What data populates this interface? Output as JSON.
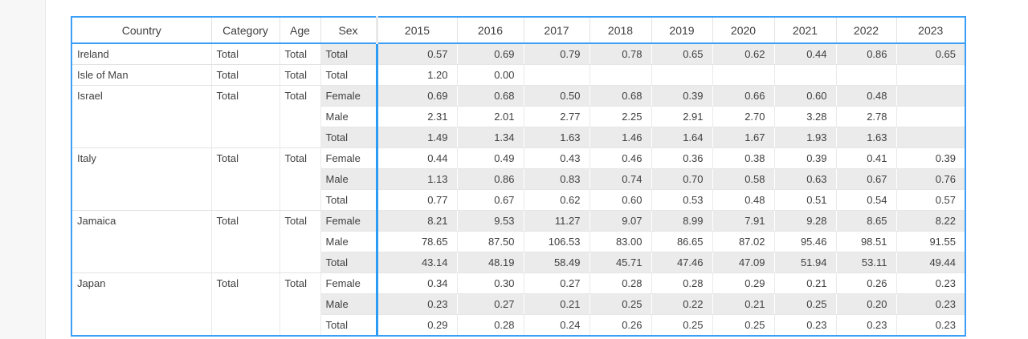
{
  "panel": {
    "name": "collapsed-side-panel"
  },
  "table": {
    "columns": [
      "Country",
      "Category",
      "Age",
      "Sex"
    ],
    "year_columns": [
      "2015",
      "2016",
      "2017",
      "2018",
      "2019",
      "2020",
      "2021",
      "2022",
      "2023"
    ],
    "groups": [
      {
        "country": "Ireland",
        "category": "Total",
        "age": "Total",
        "rows": [
          {
            "sex": "Total",
            "values": [
              "0.57",
              "0.69",
              "0.79",
              "0.78",
              "0.65",
              "0.62",
              "0.44",
              "0.86",
              "0.65"
            ]
          }
        ]
      },
      {
        "country": "Isle of Man",
        "category": "Total",
        "age": "Total",
        "rows": [
          {
            "sex": "Total",
            "values": [
              "1.20",
              "0.00",
              "",
              "",
              "",
              "",
              "",
              "",
              ""
            ]
          }
        ]
      },
      {
        "country": "Israel",
        "category": "Total",
        "age": "Total",
        "rows": [
          {
            "sex": "Female",
            "values": [
              "0.69",
              "0.68",
              "0.50",
              "0.68",
              "0.39",
              "0.66",
              "0.60",
              "0.48",
              ""
            ]
          },
          {
            "sex": "Male",
            "values": [
              "2.31",
              "2.01",
              "2.77",
              "2.25",
              "2.91",
              "2.70",
              "3.28",
              "2.78",
              ""
            ]
          },
          {
            "sex": "Total",
            "values": [
              "1.49",
              "1.34",
              "1.63",
              "1.46",
              "1.64",
              "1.67",
              "1.93",
              "1.63",
              ""
            ]
          }
        ]
      },
      {
        "country": "Italy",
        "category": "Total",
        "age": "Total",
        "rows": [
          {
            "sex": "Female",
            "values": [
              "0.44",
              "0.49",
              "0.43",
              "0.46",
              "0.36",
              "0.38",
              "0.39",
              "0.41",
              "0.39"
            ]
          },
          {
            "sex": "Male",
            "values": [
              "1.13",
              "0.86",
              "0.83",
              "0.74",
              "0.70",
              "0.58",
              "0.63",
              "0.67",
              "0.76"
            ]
          },
          {
            "sex": "Total",
            "values": [
              "0.77",
              "0.67",
              "0.62",
              "0.60",
              "0.53",
              "0.48",
              "0.51",
              "0.54",
              "0.57"
            ]
          }
        ]
      },
      {
        "country": "Jamaica",
        "category": "Total",
        "age": "Total",
        "rows": [
          {
            "sex": "Female",
            "values": [
              "8.21",
              "9.53",
              "11.27",
              "9.07",
              "8.99",
              "7.91",
              "9.28",
              "8.65",
              "8.22"
            ]
          },
          {
            "sex": "Male",
            "values": [
              "78.65",
              "87.50",
              "106.53",
              "83.00",
              "86.65",
              "87.02",
              "95.46",
              "98.51",
              "91.55"
            ]
          },
          {
            "sex": "Total",
            "values": [
              "43.14",
              "48.19",
              "58.49",
              "45.71",
              "47.46",
              "47.09",
              "51.94",
              "53.11",
              "49.44"
            ]
          }
        ]
      },
      {
        "country": "Japan",
        "category": "Total",
        "age": "Total",
        "rows": [
          {
            "sex": "Female",
            "values": [
              "0.34",
              "0.30",
              "0.27",
              "0.28",
              "0.28",
              "0.29",
              "0.21",
              "0.26",
              "0.23"
            ]
          },
          {
            "sex": "Male",
            "values": [
              "0.23",
              "0.27",
              "0.21",
              "0.25",
              "0.22",
              "0.21",
              "0.25",
              "0.20",
              "0.23"
            ]
          },
          {
            "sex": "Total",
            "values": [
              "0.29",
              "0.28",
              "0.24",
              "0.26",
              "0.25",
              "0.25",
              "0.23",
              "0.23",
              "0.23"
            ]
          }
        ]
      }
    ],
    "colors": {
      "accent_blue": "#2b9bf4",
      "zebra_gray": "#ebebeb",
      "gridline": "#e6e6e6",
      "text": "#3f3f3f"
    }
  }
}
